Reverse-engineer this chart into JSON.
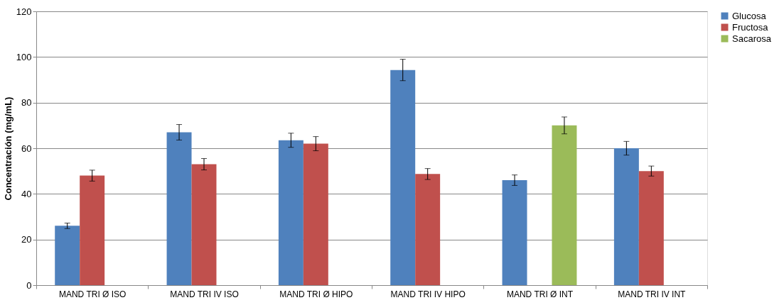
{
  "chart_data": {
    "type": "bar",
    "ylabel": "Concentración (mg/mL)",
    "categories": [
      "MAND TRI Ø ISO",
      "MAND TRI IV ISO",
      "MAND TRI Ø HIPO",
      "MAND TRI IV HIPO",
      "MAND TRI Ø INT",
      "MAND TRI IV  INT"
    ],
    "series": [
      {
        "name": "Glucosa",
        "color": "#4f81bd",
        "values": [
          26,
          67,
          63.5,
          94.3,
          46,
          60
        ],
        "errors": [
          1.2,
          3.4,
          3.1,
          4.7,
          2.3,
          3
        ]
      },
      {
        "name": "Fructosa",
        "color": "#c0504d",
        "values": [
          48,
          53,
          62,
          48.7,
          null,
          50
        ],
        "errors": [
          2.4,
          2.5,
          3.1,
          2.4,
          null,
          2.2
        ]
      },
      {
        "name": "Sacarosa",
        "color": "#9bbb59",
        "values": [
          null,
          null,
          null,
          null,
          70,
          null
        ],
        "errors": [
          null,
          null,
          null,
          null,
          3.7,
          null
        ]
      }
    ],
    "ylim": [
      0,
      120
    ],
    "yticks": [
      0,
      20,
      40,
      60,
      80,
      100,
      120
    ],
    "grid": "y",
    "legend": "right"
  }
}
